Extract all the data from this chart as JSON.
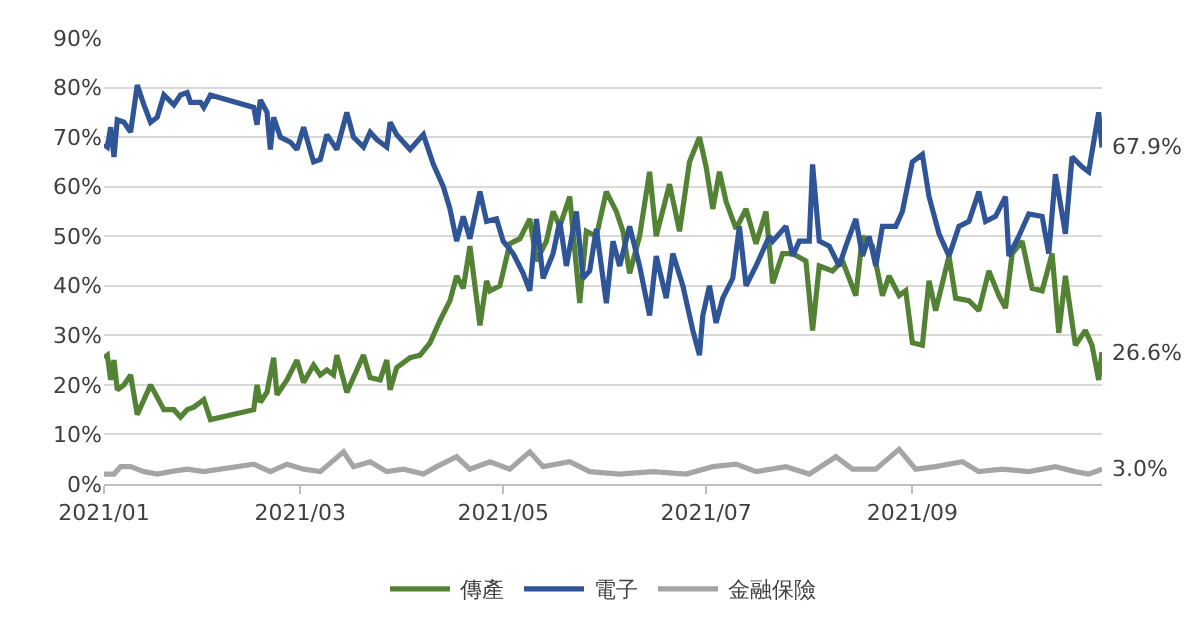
{
  "chart_data": {
    "type": "line",
    "xlim": [
      "2021-01-01",
      "2021-10-28"
    ],
    "xticks": [
      {
        "value": "2021-01-01",
        "label": "2021/01"
      },
      {
        "value": "2021-03-01",
        "label": "2021/03"
      },
      {
        "value": "2021-05-01",
        "label": "2021/05"
      },
      {
        "value": "2021-07-01",
        "label": "2021/07"
      },
      {
        "value": "2021-09-01",
        "label": "2021/09"
      }
    ],
    "ylim": [
      0,
      90
    ],
    "yticks": [
      {
        "value": 0,
        "label": "0%"
      },
      {
        "value": 10,
        "label": "10%"
      },
      {
        "value": 20,
        "label": "20%"
      },
      {
        "value": 30,
        "label": "30%"
      },
      {
        "value": 40,
        "label": "40%"
      },
      {
        "value": 50,
        "label": "50%"
      },
      {
        "value": 60,
        "label": "60%"
      },
      {
        "value": 70,
        "label": "70%"
      },
      {
        "value": 80,
        "label": "80%"
      },
      {
        "value": 90,
        "label": "90%"
      }
    ],
    "grid": "y",
    "legend": "bottom",
    "marker": "none",
    "line_style": "solid",
    "series": [
      {
        "name": "傳產",
        "color": "#548235",
        "x": [
          "2021-01-01",
          "2021-01-02",
          "2021-01-03",
          "2021-01-04",
          "2021-01-05",
          "2021-01-07",
          "2021-01-09",
          "2021-01-11",
          "2021-01-15",
          "2021-01-19",
          "2021-01-22",
          "2021-01-24",
          "2021-01-26",
          "2021-01-28",
          "2021-01-31",
          "2021-02-02",
          "2021-02-15",
          "2021-02-16",
          "2021-02-17",
          "2021-02-19",
          "2021-02-21",
          "2021-02-22",
          "2021-02-25",
          "2021-02-28",
          "2021-03-02",
          "2021-03-05",
          "2021-03-07",
          "2021-03-09",
          "2021-03-11",
          "2021-03-12",
          "2021-03-15",
          "2021-03-17",
          "2021-03-20",
          "2021-03-22",
          "2021-03-25",
          "2021-03-27",
          "2021-03-28",
          "2021-03-30",
          "2021-04-03",
          "2021-04-06",
          "2021-04-09",
          "2021-04-12",
          "2021-04-15",
          "2021-04-17",
          "2021-04-19",
          "2021-04-21",
          "2021-04-24",
          "2021-04-26",
          "2021-04-27",
          "2021-04-30",
          "2021-05-03",
          "2021-05-06",
          "2021-05-09",
          "2021-05-11",
          "2021-05-14",
          "2021-05-16",
          "2021-05-18",
          "2021-05-21",
          "2021-05-24",
          "2021-05-26",
          "2021-05-29",
          "2021-06-01",
          "2021-06-04",
          "2021-06-06",
          "2021-06-08",
          "2021-06-11",
          "2021-06-14",
          "2021-06-16",
          "2021-06-20",
          "2021-06-23",
          "2021-06-26",
          "2021-06-29",
          "2021-07-01",
          "2021-07-03",
          "2021-07-05",
          "2021-07-07",
          "2021-07-10",
          "2021-07-13",
          "2021-07-16",
          "2021-07-19",
          "2021-07-21",
          "2021-07-24",
          "2021-07-27",
          "2021-07-31",
          "2021-08-02",
          "2021-08-04",
          "2021-08-08",
          "2021-08-11",
          "2021-08-15",
          "2021-08-17",
          "2021-08-20",
          "2021-08-23",
          "2021-08-25",
          "2021-08-28",
          "2021-08-30",
          "2021-09-01",
          "2021-09-04",
          "2021-09-06",
          "2021-09-08",
          "2021-09-12",
          "2021-09-14",
          "2021-09-18",
          "2021-09-21",
          "2021-09-24",
          "2021-09-27",
          "2021-09-29",
          "2021-10-01",
          "2021-10-04",
          "2021-10-07",
          "2021-10-10",
          "2021-10-13",
          "2021-10-15",
          "2021-10-17",
          "2021-10-20",
          "2021-10-23",
          "2021-10-25",
          "2021-10-27",
          "2021-10-28"
        ],
        "values": [
          25.5,
          26,
          21,
          25,
          19,
          20,
          22,
          14,
          20,
          15,
          15,
          13.5,
          15,
          15.5,
          17,
          13,
          15,
          20,
          16.5,
          18.5,
          25.5,
          18,
          21,
          25,
          20.5,
          24,
          22,
          23,
          22,
          26,
          18.5,
          21.5,
          26,
          21.5,
          21,
          25,
          19,
          23.5,
          25.5,
          26,
          28.5,
          33,
          37,
          42,
          39.5,
          48,
          32,
          41,
          39,
          40,
          48.5,
          49.5,
          53.5,
          45,
          49,
          55,
          52,
          58,
          36.5,
          51,
          50,
          59,
          55,
          51,
          42.5,
          50,
          63,
          50,
          60.5,
          51,
          65,
          70,
          64,
          55.5,
          63,
          57,
          51.5,
          55.5,
          48.5,
          55,
          40.5,
          46.5,
          46.5,
          45,
          31,
          44,
          43,
          45,
          38,
          50,
          48,
          38,
          42,
          38,
          39,
          28.5,
          28,
          41,
          35,
          46,
          37.5,
          37,
          35,
          43,
          38,
          35.5,
          46.5,
          49,
          39.5,
          39,
          46.5,
          30.5,
          42,
          28,
          31,
          28,
          21,
          26.6
        ]
      },
      {
        "name": "電子",
        "color": "#2f5597",
        "x": [
          "2021-01-01",
          "2021-01-02",
          "2021-01-03",
          "2021-01-04",
          "2021-01-05",
          "2021-01-07",
          "2021-01-09",
          "2021-01-11",
          "2021-01-13",
          "2021-01-15",
          "2021-01-17",
          "2021-01-19",
          "2021-01-22",
          "2021-01-24",
          "2021-01-26",
          "2021-01-27",
          "2021-01-30",
          "2021-01-31",
          "2021-02-02",
          "2021-02-15",
          "2021-02-16",
          "2021-02-17",
          "2021-02-19",
          "2021-02-20",
          "2021-02-21",
          "2021-02-23",
          "2021-02-26",
          "2021-02-28",
          "2021-03-02",
          "2021-03-05",
          "2021-03-07",
          "2021-03-09",
          "2021-03-12",
          "2021-03-15",
          "2021-03-17",
          "2021-03-20",
          "2021-03-22",
          "2021-03-24",
          "2021-03-27",
          "2021-03-28",
          "2021-03-30",
          "2021-04-03",
          "2021-04-07",
          "2021-04-10",
          "2021-04-13",
          "2021-04-15",
          "2021-04-17",
          "2021-04-19",
          "2021-04-21",
          "2021-04-24",
          "2021-04-26",
          "2021-04-29",
          "2021-05-01",
          "2021-05-04",
          "2021-05-07",
          "2021-05-09",
          "2021-05-11",
          "2021-05-13",
          "2021-05-16",
          "2021-05-18",
          "2021-05-20",
          "2021-05-23",
          "2021-05-25",
          "2021-05-27",
          "2021-05-29",
          "2021-06-01",
          "2021-06-03",
          "2021-06-05",
          "2021-06-08",
          "2021-06-11",
          "2021-06-14",
          "2021-06-16",
          "2021-06-19",
          "2021-06-21",
          "2021-06-24",
          "2021-06-27",
          "2021-06-29",
          "2021-06-30",
          "2021-07-02",
          "2021-07-04",
          "2021-07-06",
          "2021-07-09",
          "2021-07-11",
          "2021-07-13",
          "2021-07-16",
          "2021-07-20",
          "2021-07-21",
          "2021-07-25",
          "2021-07-27",
          "2021-07-29",
          "2021-08-01",
          "2021-08-02",
          "2021-08-04",
          "2021-08-07",
          "2021-08-10",
          "2021-08-12",
          "2021-08-15",
          "2021-08-17",
          "2021-08-19",
          "2021-08-21",
          "2021-08-23",
          "2021-08-27",
          "2021-08-29",
          "2021-09-01",
          "2021-09-04",
          "2021-09-06",
          "2021-09-09",
          "2021-09-12",
          "2021-09-15",
          "2021-09-18",
          "2021-09-21",
          "2021-09-23",
          "2021-09-26",
          "2021-09-29",
          "2021-09-30",
          "2021-10-03",
          "2021-10-06",
          "2021-10-10",
          "2021-10-12",
          "2021-10-14",
          "2021-10-17",
          "2021-10-19",
          "2021-10-22",
          "2021-10-24",
          "2021-10-27",
          "2021-10-28"
        ],
        "values": [
          68.5,
          68,
          72,
          66,
          73.5,
          73,
          71,
          80.5,
          76.5,
          73,
          74,
          78.5,
          76.5,
          78.5,
          79,
          77,
          77,
          76,
          78.5,
          76,
          72.5,
          77.5,
          75,
          67.5,
          74,
          70,
          69,
          67.5,
          72,
          65,
          65.5,
          70.5,
          67.5,
          75,
          70,
          68,
          71,
          69.5,
          68,
          73,
          70.5,
          67.5,
          70.5,
          64.5,
          60,
          55.5,
          49,
          54,
          49.5,
          59,
          53,
          53.5,
          49,
          46.5,
          42.5,
          39,
          53.5,
          41.5,
          46.5,
          53,
          44,
          55,
          41.5,
          43,
          51.5,
          36.5,
          49,
          44,
          52,
          44,
          34,
          46,
          37.5,
          46.5,
          40,
          31,
          26,
          34,
          40,
          32.5,
          37.5,
          41.5,
          52,
          40,
          44,
          50,
          49,
          52,
          46,
          49,
          49,
          64.5,
          49,
          48,
          44,
          48,
          53.5,
          46,
          50,
          44,
          52,
          52,
          55,
          65,
          66.5,
          58,
          50.5,
          46,
          52,
          53,
          59,
          53,
          54,
          58,
          46,
          50,
          54.5,
          54,
          46.5,
          62.5,
          50.5,
          66,
          64,
          63,
          75,
          67.9
        ]
      },
      {
        "name": "金融保險",
        "color": "#a5a5a5",
        "x": [
          "2021-01-01",
          "2021-01-04",
          "2021-01-06",
          "2021-01-09",
          "2021-01-13",
          "2021-01-17",
          "2021-01-21",
          "2021-01-26",
          "2021-01-31",
          "2021-02-15",
          "2021-02-20",
          "2021-02-25",
          "2021-03-02",
          "2021-03-07",
          "2021-03-14",
          "2021-03-17",
          "2021-03-22",
          "2021-03-27",
          "2021-04-01",
          "2021-04-07",
          "2021-04-11",
          "2021-04-17",
          "2021-04-21",
          "2021-04-27",
          "2021-05-03",
          "2021-05-09",
          "2021-05-13",
          "2021-05-21",
          "2021-05-27",
          "2021-06-05",
          "2021-06-15",
          "2021-06-25",
          "2021-07-03",
          "2021-07-10",
          "2021-07-16",
          "2021-07-25",
          "2021-08-01",
          "2021-08-09",
          "2021-08-14",
          "2021-08-21",
          "2021-08-28",
          "2021-09-02",
          "2021-09-08",
          "2021-09-16",
          "2021-09-21",
          "2021-09-28",
          "2021-10-06",
          "2021-10-14",
          "2021-10-20",
          "2021-10-24",
          "2021-10-28"
        ],
        "values": [
          2,
          2,
          3.5,
          3.5,
          2.5,
          2,
          2.5,
          3,
          2.5,
          4,
          2.5,
          4,
          3,
          2.5,
          6.5,
          3.5,
          4.5,
          2.5,
          3,
          2,
          3.5,
          5.5,
          3,
          4.5,
          3,
          6.5,
          3.5,
          4.5,
          2.5,
          2,
          2.5,
          2,
          3.5,
          4,
          2.5,
          3.5,
          2,
          5.5,
          3,
          3,
          7,
          3,
          3.5,
          4.5,
          2.5,
          3,
          2.5,
          3.5,
          2.5,
          2,
          3.0
        ]
      }
    ],
    "annotations": [
      {
        "text": "67.9%",
        "x": "2021-10-28",
        "y": 67.9
      },
      {
        "text": "26.6%",
        "x": "2021-10-28",
        "y": 26.6
      },
      {
        "text": "3.0%",
        "x": "2021-10-28",
        "y": 3.0
      }
    ]
  }
}
